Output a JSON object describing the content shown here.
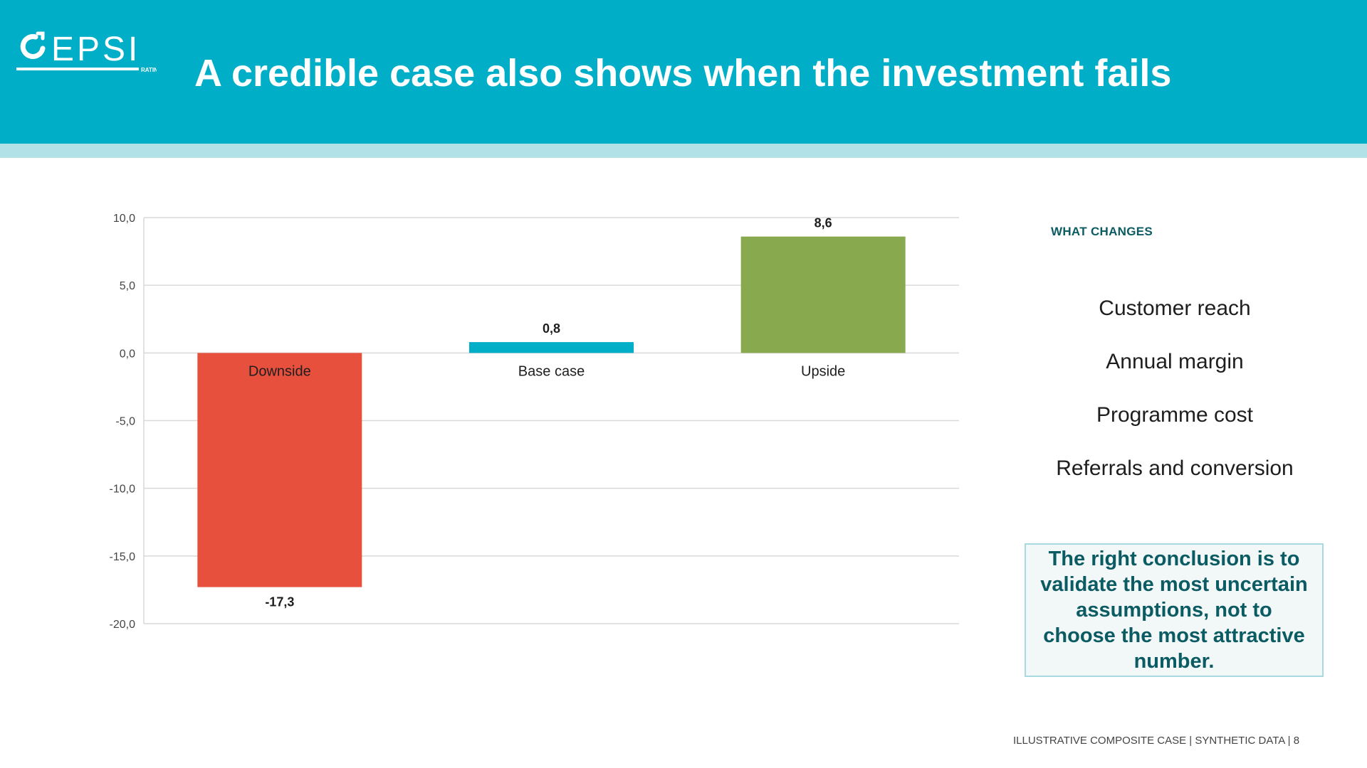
{
  "header": {
    "logo_text": "EPSI",
    "logo_subtext": "RATING",
    "title": "A credible case also shows when the investment fails"
  },
  "colors": {
    "header_bg": "#00aec8",
    "header_band": "#b2e2e8",
    "downside": "#e8503e",
    "base_case": "#00aec8",
    "upside": "#88a94e",
    "accent_text": "#0b5b63"
  },
  "chart_data": {
    "type": "bar",
    "categories": [
      "Downside",
      "Base case",
      "Upside"
    ],
    "values": [
      -17.3,
      0.8,
      8.6
    ],
    "value_labels": [
      "-17,3",
      "0,8",
      "8,6"
    ],
    "bar_colors": [
      "#e8503e",
      "#00aec8",
      "#88a94e"
    ],
    "ylim": [
      -20,
      10
    ],
    "yticks": [
      10,
      5,
      0,
      -5,
      -10,
      -15,
      -20
    ],
    "ytick_labels": [
      "10,0",
      "5,0",
      "0,0",
      "-5,0",
      "-10,0",
      "-15,0",
      "-20,0"
    ],
    "grid": true,
    "title": "",
    "xlabel": "",
    "ylabel": ""
  },
  "side_panel": {
    "heading": "WHAT CHANGES",
    "factors": [
      "Customer reach",
      "Annual margin",
      "Programme cost",
      "Referrals and conversion"
    ],
    "conclusion": "The right conclusion is to validate the most uncertain assumptions, not to choose the most attractive number."
  },
  "footer": {
    "text": "ILLUSTRATIVE COMPOSITE CASE | SYNTHETIC DATA | 8"
  }
}
